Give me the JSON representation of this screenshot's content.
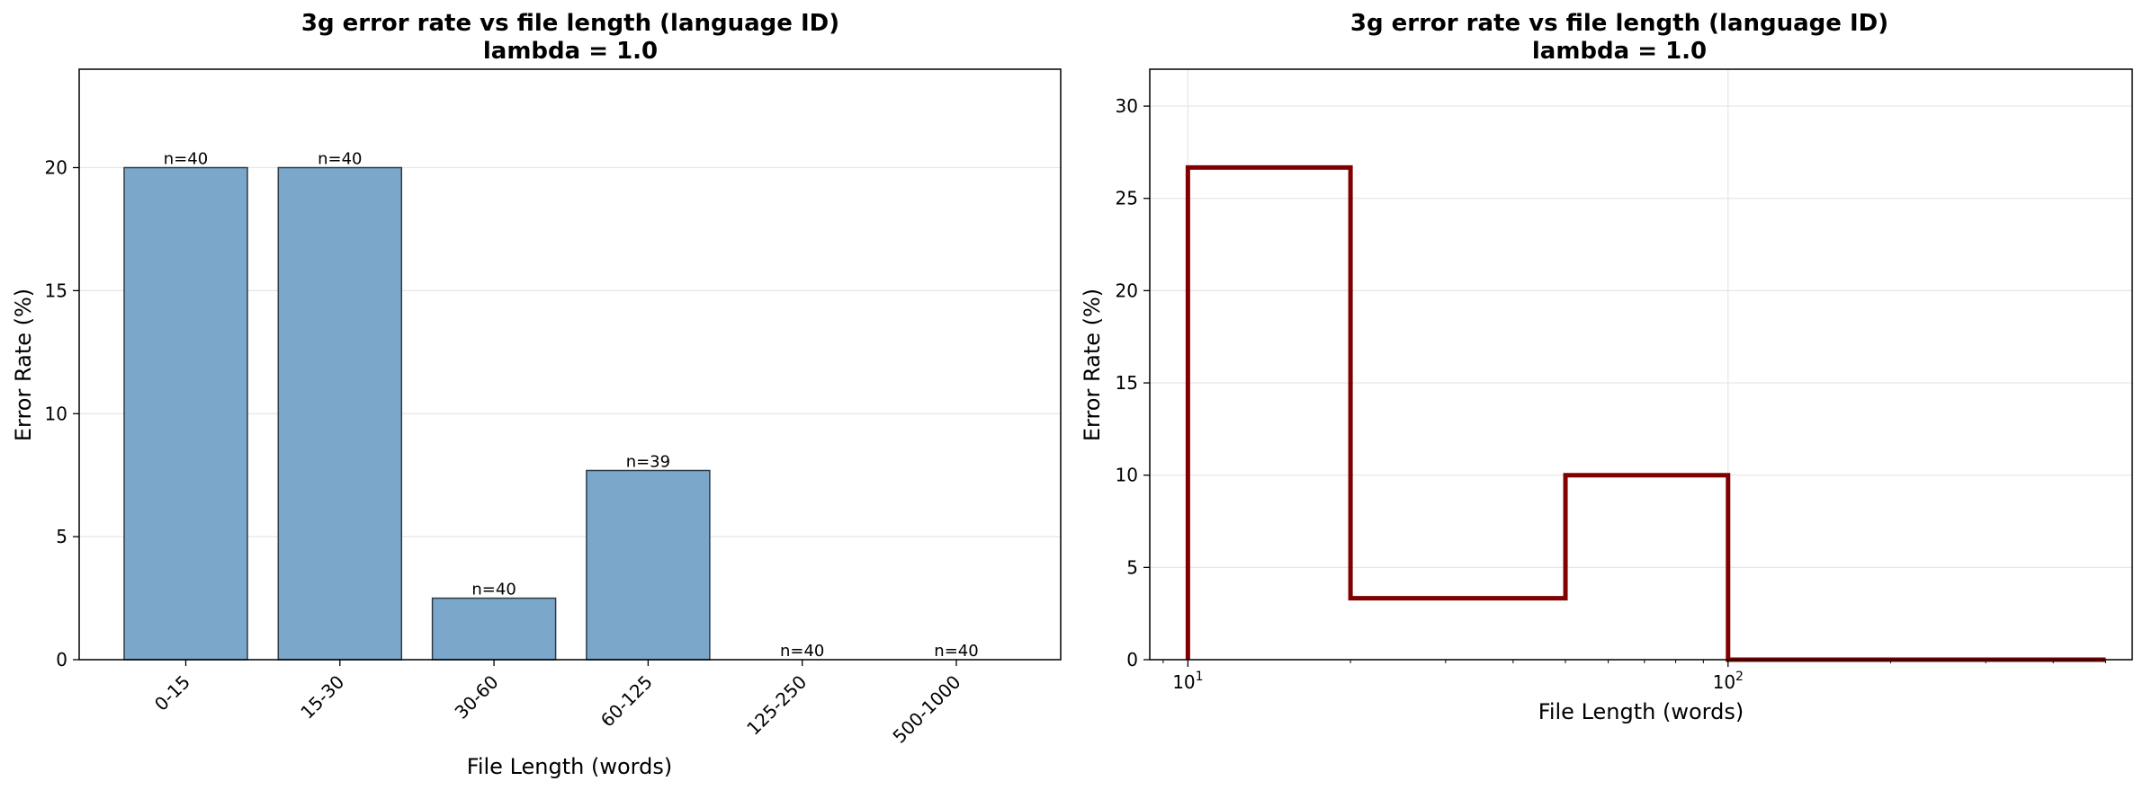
{
  "chart_data": [
    {
      "type": "bar",
      "title": "3g error rate vs file length (language ID)",
      "subtitle": "lambda = 1.0",
      "xlabel": "File Length (words)",
      "ylabel": "Error Rate (%)",
      "categories": [
        "0-15",
        "15-30",
        "30-60",
        "60-125",
        "125-250",
        "500-1000"
      ],
      "values": [
        20.0,
        20.0,
        2.5,
        7.69,
        0.0,
        0.0
      ],
      "annotations": [
        "n=40",
        "n=40",
        "n=40",
        "n=39",
        "n=40",
        "n=40"
      ],
      "ylim": [
        0,
        24
      ],
      "yticks": [
        0,
        5,
        10,
        15,
        20
      ],
      "grid": true,
      "colors": {
        "bar": "#7BA7CB",
        "edge": "#2F3B45"
      }
    },
    {
      "type": "line",
      "style": "step",
      "title": "3g error rate vs file length (language ID)",
      "subtitle": "lambda = 1.0",
      "xlabel": "File Length (words)",
      "ylabel": "Error Rate (%)",
      "xscale": "log",
      "xlim": [
        8.5,
        560
      ],
      "ylim": [
        0,
        32
      ],
      "yticks": [
        0,
        5,
        10,
        15,
        20,
        25,
        30
      ],
      "xticks": [
        10,
        100
      ],
      "xtick_labels": [
        {
          "base": "10",
          "exp": "1"
        },
        {
          "base": "10",
          "exp": "2"
        }
      ],
      "bin_edges": [
        10,
        20,
        50,
        100,
        500
      ],
      "values": [
        26.67,
        3.33,
        10.0,
        0.0
      ],
      "grid": true,
      "colors": {
        "line": "#800000"
      }
    }
  ]
}
